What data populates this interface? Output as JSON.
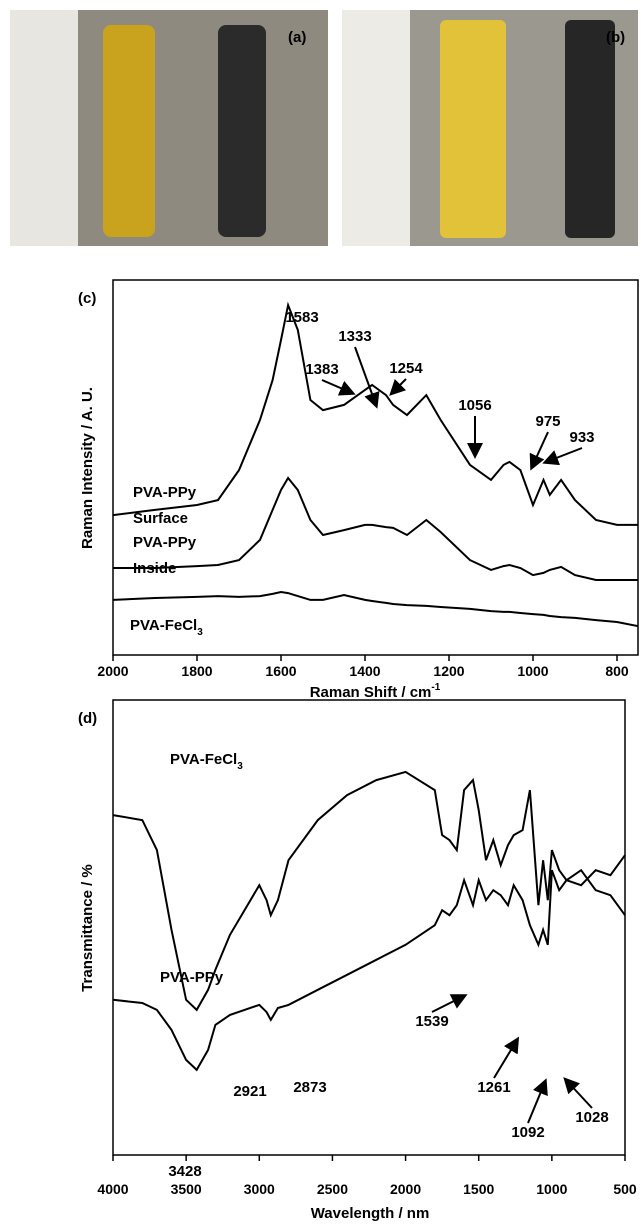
{
  "chart_data": [
    {
      "type": "line",
      "panel_label": "(c)",
      "xlabel": {
        "text": "Raman Shift / cm",
        "sup": "-1"
      },
      "ylabel": "Raman Intensity / A. U.",
      "xlim": [
        2000,
        750
      ],
      "xticks": [
        2000,
        1800,
        1600,
        1400,
        1200,
        1000,
        800
      ],
      "ylim": [
        0,
        100
      ],
      "x": [
        2000,
        1900,
        1800,
        1750,
        1700,
        1650,
        1620,
        1600,
        1583,
        1560,
        1530,
        1500,
        1450,
        1400,
        1383,
        1350,
        1333,
        1300,
        1254,
        1220,
        1150,
        1100,
        1070,
        1056,
        1030,
        1000,
        975,
        960,
        933,
        900,
        850,
        800,
        750
      ],
      "series": [
        {
          "name": [
            "PVA-PPy",
            "Surface"
          ],
          "color": "#000000",
          "values": [
            37.3,
            38.7,
            40,
            41.3,
            49.3,
            62.7,
            73.3,
            84,
            93.3,
            86.7,
            68,
            65.3,
            66.7,
            70.7,
            72,
            69.3,
            66.7,
            64,
            69.3,
            62.7,
            50.7,
            46.7,
            50.7,
            51.5,
            49.3,
            40,
            46.7,
            42.7,
            46.7,
            41.3,
            36,
            34.7,
            34.7
          ]
        },
        {
          "name": [
            "PVA-PPy",
            "Inside"
          ],
          "color": "#000000",
          "values": [
            23.2,
            23.2,
            23.7,
            24,
            25.3,
            30.7,
            38.7,
            44,
            47.2,
            44,
            36,
            32,
            33.3,
            34.7,
            34.7,
            34.1,
            33.9,
            32,
            36,
            32.8,
            25.3,
            22.7,
            23.7,
            24,
            23.2,
            21.3,
            21.9,
            22.7,
            23.5,
            21.3,
            20,
            20,
            20
          ]
        },
        {
          "name": [
            {
              "text": "PVA-FeCl",
              "sub": "3"
            }
          ],
          "color": "#000000",
          "values": [
            14.7,
            15.2,
            15.5,
            15.7,
            15.5,
            15.7,
            16.3,
            16.8,
            16.5,
            15.7,
            14.7,
            14.7,
            16,
            14.7,
            14.4,
            13.9,
            13.6,
            13.3,
            13.1,
            12.8,
            12.3,
            11.7,
            11.5,
            11.5,
            11.2,
            10.9,
            10.7,
            10.4,
            10.1,
            9.9,
            9.3,
            8.8,
            7.7
          ]
        }
      ],
      "annotations": [
        "1583",
        "1383",
        "1333",
        "1254",
        "1056",
        "975",
        "933"
      ]
    },
    {
      "type": "line",
      "panel_label": "(d)",
      "xlabel": "Wavelength / nm",
      "ylabel": "Transmittance / %",
      "xlim": [
        4000,
        500
      ],
      "xticks": [
        4000,
        3500,
        3000,
        2500,
        2000,
        1500,
        1000,
        500
      ],
      "ylim": [
        0,
        100
      ],
      "x": [
        4000,
        3800,
        3700,
        3600,
        3500,
        3428,
        3350,
        3300,
        3200,
        3000,
        2950,
        2921,
        2873,
        2800,
        2600,
        2400,
        2200,
        2000,
        1800,
        1750,
        1700,
        1650,
        1600,
        1539,
        1500,
        1450,
        1400,
        1350,
        1300,
        1261,
        1200,
        1150,
        1092,
        1060,
        1028,
        1000,
        950,
        900,
        800,
        700,
        600,
        500
      ],
      "series": [
        {
          "name": [
            {
              "text": "PVA-FeCl",
              "sub": "3"
            }
          ],
          "color": "#000000",
          "values": [
            74.7,
            73.6,
            67,
            49.5,
            34.1,
            31.9,
            36.3,
            40.7,
            48.4,
            59.3,
            56,
            52.7,
            56,
            64.8,
            73.6,
            79.1,
            82.4,
            84.2,
            80.2,
            70.3,
            69.2,
            67,
            80.2,
            82.4,
            75.8,
            64.8,
            69.2,
            63.7,
            68.1,
            70.3,
            71.4,
            80.2,
            54.9,
            64.8,
            56,
            67,
            62.6,
            60.4,
            62.6,
            58.2,
            57.1,
            52.7
          ]
        },
        {
          "name": [
            "PVA-PPy"
          ],
          "color": "#000000",
          "values": [
            34.1,
            33.4,
            31.9,
            27.5,
            20.9,
            18.7,
            23.1,
            28.6,
            30.8,
            33,
            31.4,
            29.7,
            32.3,
            33,
            36.3,
            39.6,
            42.9,
            46.2,
            50.5,
            53.8,
            52.7,
            54.9,
            60.4,
            54.9,
            60.4,
            56,
            58.2,
            57.1,
            54.9,
            59.3,
            56,
            50.5,
            46.2,
            49.5,
            46.2,
            62.6,
            58.2,
            60.4,
            59.3,
            62.6,
            61.5,
            65.9
          ]
        }
      ],
      "annotations": [
        "3428",
        "2921",
        "2873",
        "1539",
        "1261",
        "1092",
        "1028"
      ]
    }
  ],
  "photos": [
    {
      "panel_label": "(a)"
    },
    {
      "panel_label": "(b)"
    }
  ]
}
